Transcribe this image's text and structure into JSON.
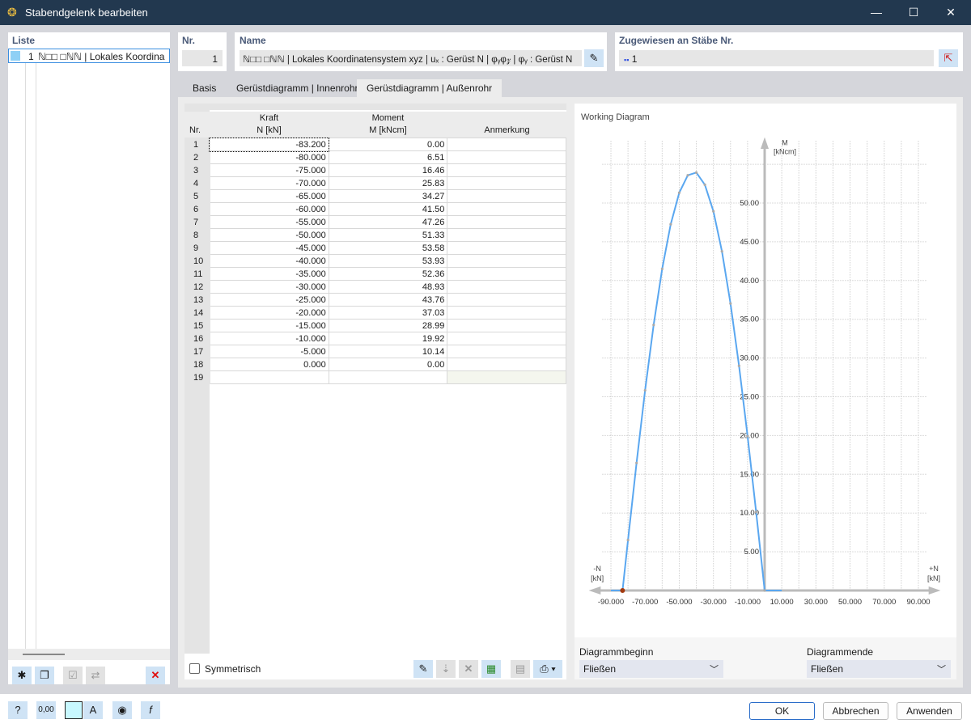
{
  "window": {
    "title": "Stabendgelenk bearbeiten"
  },
  "list": {
    "label": "Liste",
    "items": [
      {
        "nr": "1",
        "text": "ℕ□□ □ℕℕ | Lokales Koordina"
      }
    ]
  },
  "nr": {
    "label": "Nr.",
    "value": "1"
  },
  "name": {
    "label": "Name",
    "value": "ℕ□□ □ℕℕ | Lokales Koordinatensystem xyz | uₓ : Gerüst N | φᵧφ𝓏 | φᵧ : Gerüst N"
  },
  "assigned": {
    "label": "Zugewiesen an Stäbe Nr.",
    "value": "1"
  },
  "tabs": [
    {
      "label": "Basis"
    },
    {
      "label": "Gerüstdiagramm | Innenrohr"
    },
    {
      "label": "Gerüstdiagramm | Außenrohr",
      "active": true
    }
  ],
  "table": {
    "headers": {
      "nr": "Nr.",
      "kraft": "Kraft",
      "kraft_unit": "N [kN]",
      "moment": "Moment",
      "moment_unit": "M [kNcm]",
      "note": "Anmerkung"
    },
    "rows": [
      [
        "1",
        "-83.200",
        "0.00"
      ],
      [
        "2",
        "-80.000",
        "6.51"
      ],
      [
        "3",
        "-75.000",
        "16.46"
      ],
      [
        "4",
        "-70.000",
        "25.83"
      ],
      [
        "5",
        "-65.000",
        "34.27"
      ],
      [
        "6",
        "-60.000",
        "41.50"
      ],
      [
        "7",
        "-55.000",
        "47.26"
      ],
      [
        "8",
        "-50.000",
        "51.33"
      ],
      [
        "9",
        "-45.000",
        "53.58"
      ],
      [
        "10",
        "-40.000",
        "53.93"
      ],
      [
        "11",
        "-35.000",
        "52.36"
      ],
      [
        "12",
        "-30.000",
        "48.93"
      ],
      [
        "13",
        "-25.000",
        "43.76"
      ],
      [
        "14",
        "-20.000",
        "37.03"
      ],
      [
        "15",
        "-15.000",
        "28.99"
      ],
      [
        "16",
        "-10.000",
        "19.92"
      ],
      [
        "17",
        "-5.000",
        "10.14"
      ],
      [
        "18",
        "0.000",
        "0.00"
      ],
      [
        "19",
        "",
        ""
      ]
    ]
  },
  "symmetric": {
    "label": "Symmetrisch",
    "checked": false
  },
  "diagram": {
    "begin_label": "Diagrammbeginn",
    "begin_value": "Fließen",
    "end_label": "Diagrammende",
    "end_value": "Fließen"
  },
  "chart_data": {
    "type": "line",
    "title": "Working Diagram",
    "xlabel_neg": "-N",
    "xlabel_pos": "+N",
    "xunit": "[kN]",
    "ylabel": "M",
    "yunit": "[kNcm]",
    "xlim": [
      -100,
      100
    ],
    "ylim": [
      0,
      58
    ],
    "xticks": [
      "-90.000",
      "-70.000",
      "-50.000",
      "-30.000",
      "-10.000",
      "10.000",
      "30.000",
      "50.000",
      "70.000",
      "90.000"
    ],
    "yticks": [
      "5.00",
      "10.00",
      "15.00",
      "20.00",
      "25.00",
      "30.00",
      "35.00",
      "40.00",
      "45.00",
      "50.00"
    ],
    "grid": true,
    "color": "#5aa7f0",
    "marker_color": "#a33a10",
    "x": [
      -83.2,
      -80,
      -75,
      -70,
      -65,
      -60,
      -55,
      -50,
      -45,
      -40,
      -35,
      -30,
      -25,
      -20,
      -15,
      -10,
      -5,
      0
    ],
    "y": [
      0,
      6.51,
      16.46,
      25.83,
      34.27,
      41.5,
      47.26,
      51.33,
      53.58,
      53.93,
      52.36,
      48.93,
      43.76,
      37.03,
      28.99,
      19.92,
      10.14,
      0
    ],
    "flat_segments": [
      [
        -90,
        -83.2
      ],
      [
        0,
        10
      ]
    ]
  },
  "footer": {
    "ok": "OK",
    "cancel": "Abbrechen",
    "apply": "Anwenden"
  }
}
